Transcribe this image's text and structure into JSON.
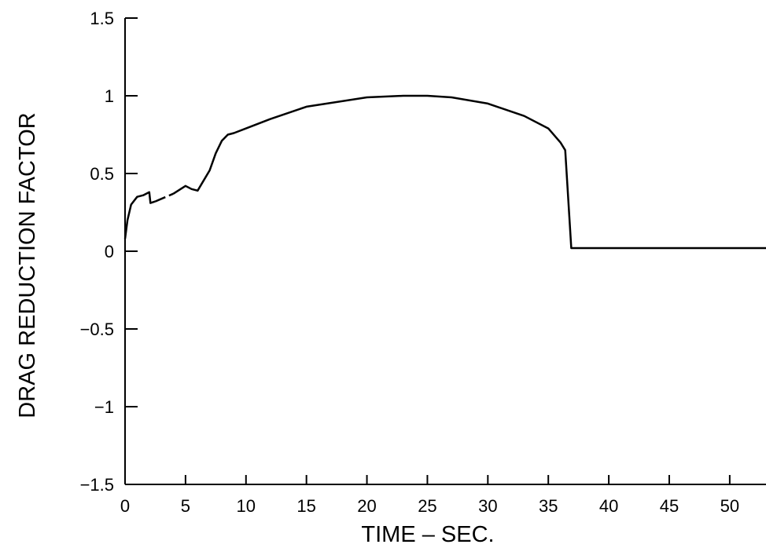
{
  "chart_data": {
    "type": "line",
    "title": "",
    "xlabel": "TIME – SEC.",
    "ylabel": "DRAG REDUCTION FACTOR",
    "xlim": [
      0,
      53
    ],
    "ylim": [
      -1.5,
      1.5
    ],
    "x_ticks": [
      "0",
      "5",
      "10",
      "15",
      "20",
      "25",
      "30",
      "35",
      "40",
      "45",
      "50"
    ],
    "y_ticks": [
      "1.5",
      "1",
      "0.5",
      "0",
      "−0.5",
      "−1",
      "−1.5"
    ],
    "grid": false,
    "legend": "none",
    "series": [
      {
        "segments": [
          {
            "style": "solid",
            "points": [
              [
                0,
                0.08
              ],
              [
                0.2,
                0.2
              ],
              [
                0.5,
                0.3
              ],
              [
                1.0,
                0.35
              ],
              [
                1.5,
                0.36
              ],
              [
                2.0,
                0.38
              ],
              [
                2.1,
                0.31
              ],
              [
                2.5,
                0.32
              ]
            ]
          },
          {
            "style": "dashed",
            "points": [
              [
                2.5,
                0.32
              ],
              [
                4.0,
                0.37
              ]
            ]
          },
          {
            "style": "solid",
            "points": [
              [
                4.0,
                0.37
              ],
              [
                5.0,
                0.42
              ],
              [
                5.5,
                0.4
              ],
              [
                6.0,
                0.39
              ],
              [
                7.0,
                0.52
              ],
              [
                7.5,
                0.63
              ],
              [
                8.0,
                0.71
              ],
              [
                8.5,
                0.75
              ],
              [
                9.0,
                0.76
              ],
              [
                10.0,
                0.79
              ],
              [
                12.0,
                0.85
              ],
              [
                15.0,
                0.93
              ],
              [
                20.0,
                0.99
              ],
              [
                23.0,
                1.0
              ],
              [
                25.0,
                1.0
              ],
              [
                27.0,
                0.99
              ],
              [
                30.0,
                0.95
              ],
              [
                33.0,
                0.87
              ],
              [
                35.0,
                0.79
              ],
              [
                36.0,
                0.7
              ],
              [
                36.4,
                0.65
              ],
              [
                36.9,
                0.02
              ],
              [
                53.0,
                0.02
              ]
            ]
          }
        ]
      }
    ]
  }
}
